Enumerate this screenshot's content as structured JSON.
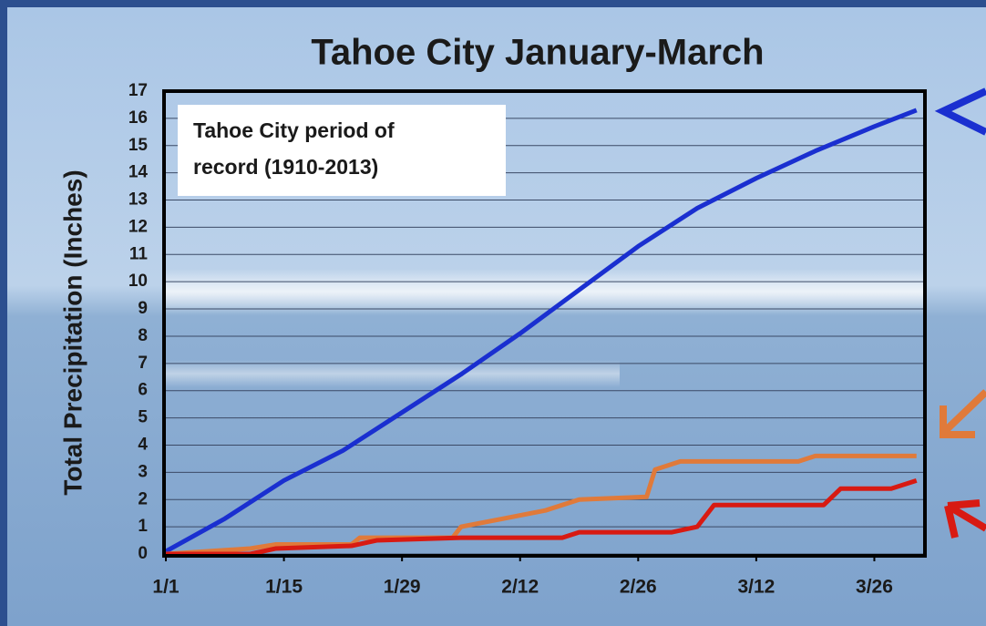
{
  "chart_data": {
    "type": "line",
    "title": "Tahoe City January-March",
    "annotation": [
      "Tahoe City period of",
      "record (1910-2013)"
    ],
    "ylabel": "Total Precipitation (Inches)",
    "xlim": [
      0,
      90
    ],
    "xticks": [
      {
        "value": 0,
        "label": "1/1"
      },
      {
        "value": 14,
        "label": "1/15"
      },
      {
        "value": 28,
        "label": "1/29"
      },
      {
        "value": 42,
        "label": "2/12"
      },
      {
        "value": 56,
        "label": "2/26"
      },
      {
        "value": 70,
        "label": "3/12"
      },
      {
        "value": 84,
        "label": "3/26"
      }
    ],
    "ylim": [
      0,
      17
    ],
    "yticks": [
      0,
      1,
      2,
      3,
      4,
      5,
      6,
      7,
      8,
      9,
      10,
      11,
      12,
      13,
      14,
      15,
      16,
      17
    ],
    "grid": true,
    "series": [
      {
        "color": "#1a2fd0",
        "x": [
          0,
          7,
          14,
          21,
          28,
          35,
          42,
          49,
          56,
          63,
          70,
          77,
          84,
          89
        ],
        "values": [
          0.1,
          1.3,
          2.7,
          3.8,
          5.2,
          6.6,
          8.1,
          9.7,
          11.3,
          12.7,
          13.8,
          14.8,
          15.7,
          16.3
        ]
      },
      {
        "color": "#e07a3a",
        "x": [
          0,
          10,
          13,
          22,
          23,
          34,
          35,
          40,
          45,
          49,
          57,
          58,
          61,
          75,
          77,
          89
        ],
        "values": [
          0,
          0.2,
          0.35,
          0.35,
          0.6,
          0.6,
          1.0,
          1.3,
          1.6,
          2.0,
          2.1,
          3.1,
          3.4,
          3.4,
          3.6,
          3.6
        ]
      },
      {
        "color": "#d81a12",
        "x": [
          0,
          10,
          13,
          22,
          25,
          35,
          47,
          49,
          60,
          63,
          65,
          78,
          80,
          86,
          89
        ],
        "values": [
          0,
          0,
          0.2,
          0.3,
          0.5,
          0.6,
          0.6,
          0.8,
          0.8,
          1.0,
          1.8,
          1.8,
          2.4,
          2.4,
          2.7
        ]
      }
    ]
  }
}
